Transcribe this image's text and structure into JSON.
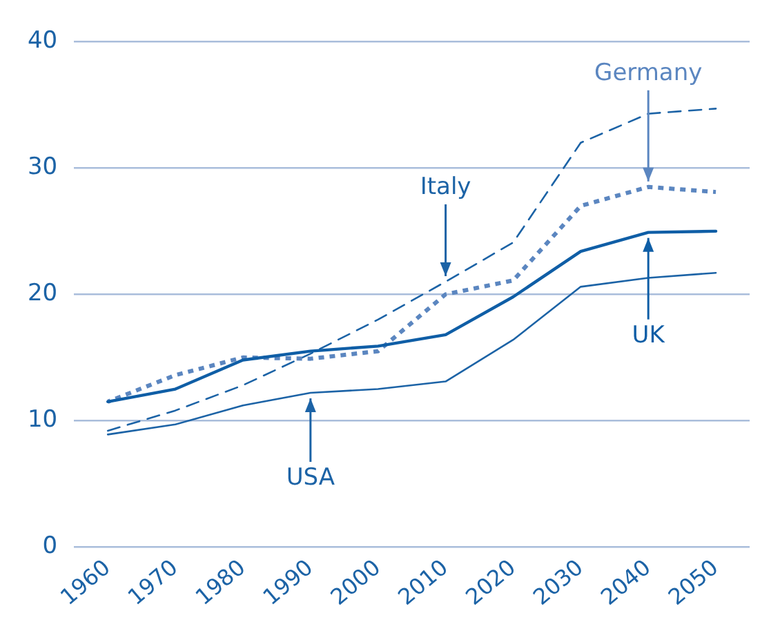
{
  "chart_data": {
    "type": "line",
    "categories": [
      "1960",
      "1970",
      "1980",
      "1990",
      "2000",
      "2010",
      "2020",
      "2030",
      "2040",
      "2050"
    ],
    "series": [
      {
        "name": "UK",
        "color": "#0f5ea6",
        "line_style": "solid",
        "values": [
          11.5,
          12.5,
          14.8,
          15.5,
          15.9,
          16.8,
          19.8,
          23.4,
          24.9,
          25.0
        ]
      },
      {
        "name": "USA",
        "color": "#1c63a6",
        "line_style": "solid",
        "values": [
          8.9,
          9.7,
          11.2,
          12.2,
          12.5,
          13.1,
          16.4,
          20.6,
          21.3,
          21.7
        ]
      },
      {
        "name": "Germany",
        "color": "#5b86c0",
        "line_style": "dotted",
        "values": [
          11.5,
          13.6,
          15.0,
          14.9,
          15.5,
          20.0,
          21.1,
          27.0,
          28.5,
          28.1
        ]
      },
      {
        "name": "Italy",
        "color": "#1c63a6",
        "line_style": "dashed",
        "values": [
          9.2,
          10.8,
          12.8,
          15.3,
          18.0,
          21.0,
          24.1,
          32.0,
          34.3,
          34.7
        ]
      }
    ],
    "ylim": [
      0,
      40
    ],
    "yticks": [
      0,
      10,
      20,
      30,
      40
    ],
    "grid": "y",
    "legend": false,
    "marker": "none"
  }
}
